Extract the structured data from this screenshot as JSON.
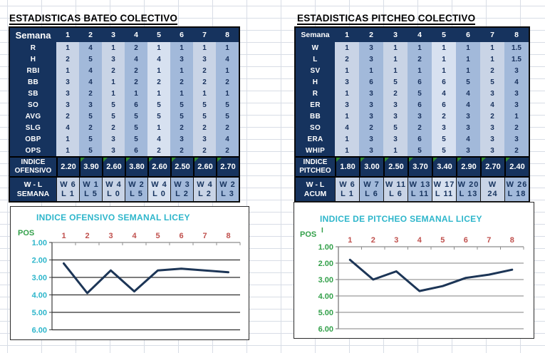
{
  "colors": {
    "navy": "#16335E",
    "stripe_light": "#C9D4E6",
    "stripe_medium": "#A2B9DA",
    "stripe_pale": "#D7E1F0",
    "cell_text": "#17305C",
    "gridline_bg": "#D8DDE6",
    "title_cyan": "#2EB6CB",
    "tick_red": "#C0504D",
    "pos_green": "#33A04A",
    "line_navy": "#1C3556",
    "chart_grid_dark": "#2F2F2F",
    "chart_grid_gray": "#9B9B9B",
    "axis_gray": "#8C8C8C",
    "triangle_green": "#2E8B2E"
  },
  "left_table": {
    "title": "ESTADISTICAS BATEO COLECTIVO",
    "corner_label": "Semana",
    "week_headers": [
      "1",
      "2",
      "3",
      "4",
      "5",
      "6",
      "7",
      "8"
    ],
    "rows": [
      {
        "label": "R",
        "values": [
          "1",
          "4",
          "1",
          "2",
          "1",
          "1",
          "1",
          "1"
        ]
      },
      {
        "label": "H",
        "values": [
          "2",
          "5",
          "3",
          "4",
          "4",
          "3",
          "3",
          "4"
        ]
      },
      {
        "label": "RBI",
        "values": [
          "1",
          "4",
          "2",
          "2",
          "1",
          "1",
          "2",
          "1"
        ]
      },
      {
        "label": "BB",
        "values": [
          "3",
          "4",
          "1",
          "2",
          "2",
          "2",
          "2",
          "2"
        ]
      },
      {
        "label": "SB",
        "values": [
          "3",
          "2",
          "1",
          "1",
          "1",
          "1",
          "1",
          "1"
        ]
      },
      {
        "label": "SO",
        "values": [
          "3",
          "3",
          "5",
          "6",
          "5",
          "5",
          "5",
          "5"
        ]
      },
      {
        "label": "AVG",
        "values": [
          "2",
          "5",
          "5",
          "5",
          "5",
          "5",
          "5",
          "5"
        ]
      },
      {
        "label": "SLG",
        "values": [
          "4",
          "2",
          "2",
          "5",
          "1",
          "2",
          "2",
          "2"
        ]
      },
      {
        "label": "OBP",
        "values": [
          "1",
          "5",
          "3",
          "5",
          "4",
          "3",
          "3",
          "4"
        ]
      },
      {
        "label": "OPS",
        "values": [
          "1",
          "5",
          "3",
          "6",
          "2",
          "2",
          "2",
          "2"
        ]
      }
    ],
    "indice_row": {
      "label": [
        "INDICE",
        "OFENSIVO"
      ],
      "values": [
        "2.20",
        "3.90",
        "2.60",
        "3.80",
        "2.60",
        "2.50",
        "2.60",
        "2.70"
      ],
      "comment_flags": [
        false,
        true,
        true,
        true,
        true,
        true,
        true,
        true
      ]
    },
    "wl_row": {
      "label": [
        "W - L",
        "SEMANA"
      ],
      "cells": [
        [
          "W 6",
          "L 1"
        ],
        [
          "W 1",
          "L 5"
        ],
        [
          "W 4",
          "L 0"
        ],
        [
          "W 2",
          "L 5"
        ],
        [
          "W 4",
          "L 0"
        ],
        [
          "W 3",
          "L 2"
        ],
        [
          "W 4",
          "L 2"
        ],
        [
          "W 2",
          "L 3"
        ]
      ]
    }
  },
  "right_table": {
    "title": "ESTADISTICAS PITCHEO COLECTIVO",
    "corner_label": "Semana",
    "week_headers": [
      "1",
      "2",
      "3",
      "4",
      "5",
      "6",
      "7",
      "8"
    ],
    "rows": [
      {
        "label": "W",
        "values": [
          "1",
          "3",
          "1",
          "1",
          "1",
          "1",
          "1",
          "1.5"
        ]
      },
      {
        "label": "L",
        "values": [
          "2",
          "3",
          "1",
          "2",
          "1",
          "1",
          "1",
          "1.5"
        ]
      },
      {
        "label": "SV",
        "values": [
          "1",
          "1",
          "1",
          "1",
          "1",
          "1",
          "2",
          "3"
        ]
      },
      {
        "label": "H",
        "values": [
          "3",
          "6",
          "5",
          "6",
          "6",
          "5",
          "5",
          "4"
        ]
      },
      {
        "label": "R",
        "values": [
          "1",
          "3",
          "2",
          "5",
          "4",
          "4",
          "3",
          "3"
        ]
      },
      {
        "label": "ER",
        "values": [
          "3",
          "3",
          "3",
          "6",
          "6",
          "4",
          "4",
          "3"
        ]
      },
      {
        "label": "BB",
        "values": [
          "1",
          "3",
          "3",
          "3",
          "2",
          "3",
          "2",
          "1"
        ]
      },
      {
        "label": "SO",
        "values": [
          "4",
          "2",
          "5",
          "2",
          "3",
          "3",
          "3",
          "2"
        ]
      },
      {
        "label": "ERA",
        "values": [
          "1",
          "3",
          "3",
          "6",
          "5",
          "4",
          "3",
          "3"
        ]
      },
      {
        "label": "WHIP",
        "values": [
          "1",
          "3",
          "1",
          "5",
          "5",
          "3",
          "3",
          "2"
        ]
      }
    ],
    "indice_row": {
      "label": [
        "INDICE",
        "PITCHEO"
      ],
      "values": [
        "1.80",
        "3.00",
        "2.50",
        "3.70",
        "3.40",
        "2.90",
        "2.70",
        "2.40"
      ],
      "comment_flags": [
        true,
        true,
        true,
        true,
        true,
        true,
        true,
        true
      ]
    },
    "wl_row": {
      "label": [
        "W - L",
        "ACUM"
      ],
      "cells": [
        [
          "W 6",
          "L 1"
        ],
        [
          "W 7",
          "L 6"
        ],
        [
          "W 11",
          "L 6"
        ],
        [
          "W 13",
          "L 11"
        ],
        [
          "W 17",
          "L 11"
        ],
        [
          "W 20",
          "L 13"
        ],
        [
          "W",
          "24"
        ],
        [
          "W 26",
          "L 18"
        ]
      ]
    }
  },
  "chart_data": [
    {
      "type": "line",
      "title": "INDICE OFENSIVO SEMANAL LICEY",
      "ylabel": "POS",
      "x": [
        "1",
        "2",
        "3",
        "4",
        "5",
        "6",
        "7",
        "8"
      ],
      "series": [
        {
          "name": "INDICE OFENSIVO",
          "values": [
            2.2,
            3.9,
            2.6,
            3.8,
            2.6,
            2.5,
            2.6,
            2.7
          ]
        }
      ],
      "ylim": [
        1,
        6
      ],
      "yticks": [
        "1.00",
        "2.00",
        "3.00",
        "4.00",
        "5.00",
        "6.00"
      ],
      "y_axis_inverted": true,
      "grid": "horizontal",
      "legend": "none"
    },
    {
      "type": "line",
      "title": "INDICE DE PITCHEO SEMANAL LICEY",
      "ylabel": "POS",
      "note": "I",
      "x": [
        "1",
        "2",
        "3",
        "4",
        "5",
        "6",
        "7",
        "8"
      ],
      "series": [
        {
          "name": "INDICE PITCHEO",
          "values": [
            1.8,
            3.0,
            2.5,
            3.7,
            3.4,
            2.9,
            2.7,
            2.4
          ]
        }
      ],
      "ylim": [
        1,
        6
      ],
      "yticks": [
        "1.00",
        "2.00",
        "3.00",
        "4.00",
        "5.00",
        "6.00"
      ],
      "y_axis_inverted": true,
      "grid": "horizontal",
      "legend": "none"
    }
  ]
}
